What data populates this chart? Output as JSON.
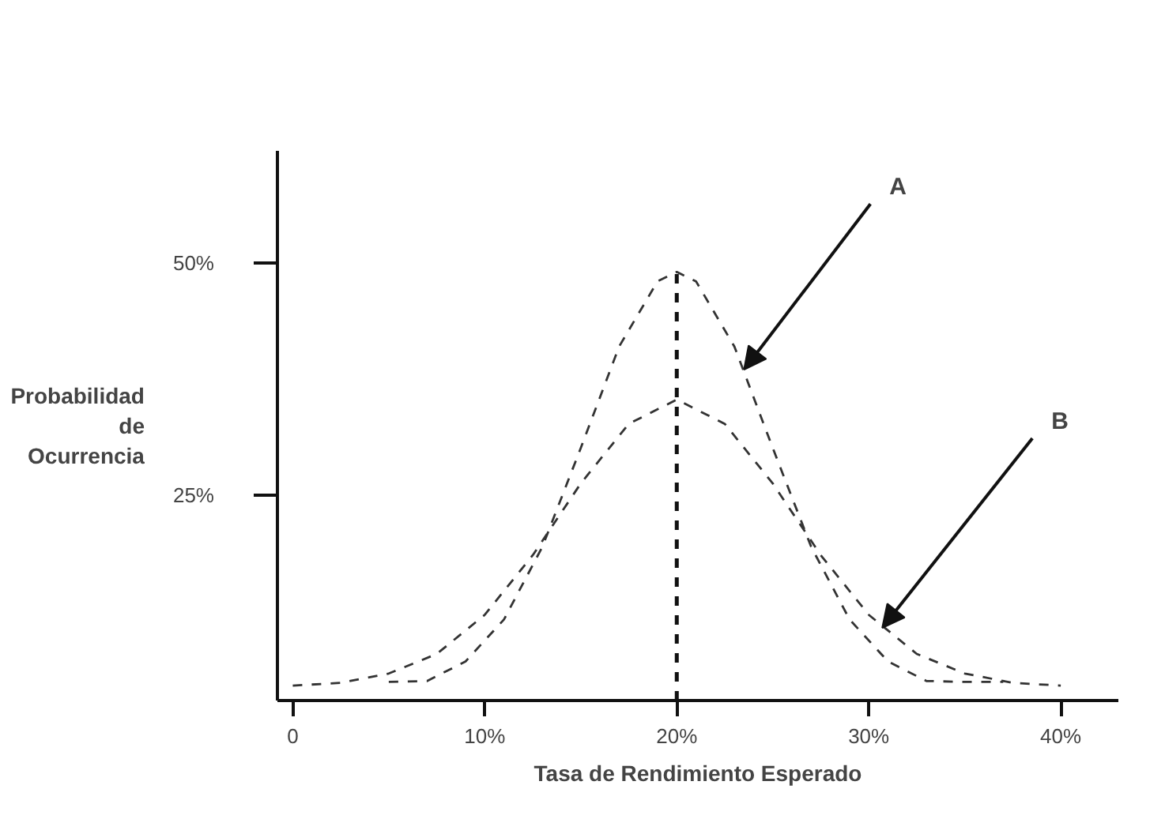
{
  "chart_data": {
    "type": "line",
    "xlabel": "Tasa de Rendimiento Esperado",
    "ylabel": "Probabilidad\nde\nOcurrencia",
    "series": [
      {
        "color": "#333333",
        "x": [
          5,
          7,
          9,
          11,
          13,
          15,
          17,
          19,
          20,
          21,
          23,
          25,
          27,
          29,
          31,
          33,
          35,
          37
        ],
        "values": [
          5,
          5.1,
          7.2,
          11.7,
          19.5,
          30.1,
          41,
          48,
          49,
          48,
          41,
          30.1,
          19.5,
          11.7,
          7.2,
          5.1,
          5,
          5
        ]
      },
      {
        "color": "#333333",
        "x": [
          0,
          2.5,
          5,
          7.5,
          10,
          12.5,
          15,
          17.5,
          20,
          22.5,
          25,
          27.5,
          30,
          32.5,
          35,
          37.5,
          40
        ],
        "values": [
          4.6,
          4.9,
          5.9,
          8,
          12.2,
          18.6,
          26.3,
          32.7,
          35.3,
          32.7,
          26.3,
          18.6,
          12.2,
          8,
          5.9,
          4.9,
          4.6
        ]
      }
    ],
    "annotations": [
      {
        "text": "A",
        "x": 23.5,
        "y": 38.5
      },
      {
        "text": "B",
        "x": 30.7,
        "y": 10.8
      }
    ],
    "ref_lines": [
      {
        "axis": "x",
        "value": 20,
        "color": "#111111",
        "line_style": "dashed"
      }
    ],
    "xlim": [
      -0.8,
      43
    ],
    "ylim": [
      3,
      62
    ],
    "xticks": [
      0,
      {
        "value": 10,
        "label": "10%"
      },
      {
        "value": 20,
        "label": "20%"
      },
      {
        "value": 30,
        "label": "30%"
      },
      {
        "value": 40,
        "label": "40%"
      }
    ],
    "yticks": [
      {
        "value": 25,
        "label": "25%"
      },
      {
        "value": 50,
        "label": "50%"
      }
    ],
    "grid": false,
    "marker": "none",
    "line_style": "dashed"
  }
}
